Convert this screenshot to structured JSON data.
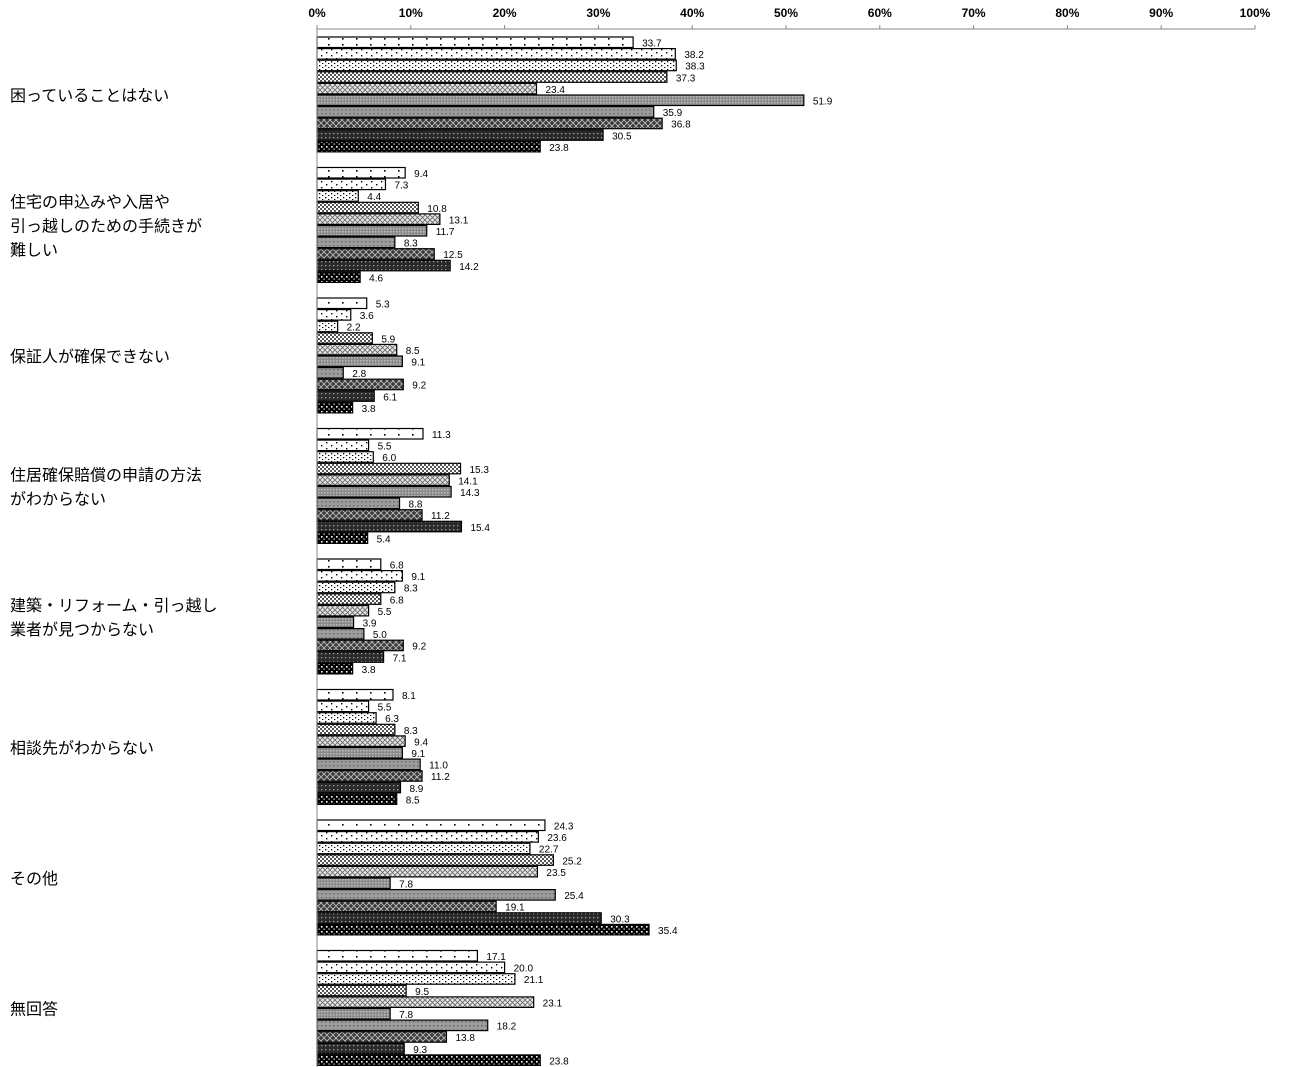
{
  "chart_data": {
    "type": "bar",
    "orientation": "horizontal",
    "xlim": [
      0,
      100
    ],
    "x_ticks": [
      "0%",
      "10%",
      "20%",
      "30%",
      "40%",
      "50%",
      "60%",
      "70%",
      "80%",
      "90%",
      "100%"
    ],
    "grid": false,
    "legend": "none",
    "categories": [
      [
        "困っていることはない"
      ],
      [
        "住宅の申込みや入居や",
        "引っ越しのための手続きが",
        "難しい"
      ],
      [
        "保証人が確保できない"
      ],
      [
        "住居確保賠償の申請の方法",
        "がわからない"
      ],
      [
        "建築・リフォーム・引っ越し",
        "業者が見つからない"
      ],
      [
        "相談先がわからない"
      ],
      [
        "その他"
      ],
      [
        "無回答"
      ]
    ],
    "series": [
      {
        "values": [
          33.7,
          9.4,
          5.3,
          11.3,
          6.8,
          8.1,
          24.3,
          17.1
        ],
        "value_labels": [
          "33.7",
          "9.4",
          "5.3",
          "11.3",
          "6.8",
          "8.1",
          "24.3",
          "17.1"
        ]
      },
      {
        "values": [
          38.2,
          7.3,
          3.6,
          5.5,
          9.1,
          5.5,
          23.6,
          20.0
        ],
        "value_labels": [
          "38.2",
          "7.3",
          "3.6",
          "5.5",
          "9.1",
          "5.5",
          "23.6",
          "20.0"
        ]
      },
      {
        "values": [
          38.3,
          4.4,
          2.2,
          6.0,
          8.3,
          6.3,
          22.7,
          21.1
        ],
        "value_labels": [
          "38.3",
          "4.4",
          "2.2",
          "6.0",
          "8.3",
          "6.3",
          "22.7",
          "21.1"
        ]
      },
      {
        "values": [
          37.3,
          10.8,
          5.9,
          15.3,
          6.8,
          8.3,
          25.2,
          9.5
        ],
        "value_labels": [
          "37.3",
          "10.8",
          "5.9",
          "15.3",
          "6.8",
          "8.3",
          "25.2",
          "9.5"
        ]
      },
      {
        "values": [
          23.4,
          13.1,
          8.5,
          14.1,
          5.5,
          9.4,
          23.5,
          23.1
        ],
        "value_labels": [
          "23.4",
          "13.1",
          "8.5",
          "14.1",
          "5.5",
          "9.4",
          "23.5",
          "23.1"
        ]
      },
      {
        "values": [
          51.9,
          11.7,
          9.1,
          14.3,
          3.9,
          9.1,
          7.8,
          7.8
        ],
        "value_labels": [
          "51.9",
          "11.7",
          "9.1",
          "14.3",
          "3.9",
          "9.1",
          "7.8",
          "7.8"
        ]
      },
      {
        "values": [
          35.9,
          8.3,
          2.8,
          8.8,
          5.0,
          11.0,
          25.4,
          18.2
        ],
        "value_labels": [
          "35.9",
          "8.3",
          "2.8",
          "8.8",
          "5.0",
          "11.0",
          "25.4",
          "18.2"
        ]
      },
      {
        "values": [
          36.8,
          12.5,
          9.2,
          11.2,
          9.2,
          11.2,
          19.1,
          13.8
        ],
        "value_labels": [
          "36.8",
          "12.5",
          "9.2",
          "11.2",
          "9.2",
          "11.2",
          "19.1",
          "13.8"
        ]
      },
      {
        "values": [
          30.5,
          14.2,
          6.1,
          15.4,
          7.1,
          8.9,
          30.3,
          9.3
        ],
        "value_labels": [
          "30.5",
          "14.2",
          "6.1",
          "15.4",
          "7.1",
          "8.9",
          "30.3",
          "9.3"
        ]
      },
      {
        "values": [
          23.8,
          4.6,
          3.8,
          5.4,
          3.8,
          8.5,
          35.4,
          23.8
        ],
        "value_labels": [
          "23.8",
          "4.6",
          "3.8",
          "5.4",
          "3.8",
          "8.5",
          "35.4",
          "23.8"
        ]
      }
    ],
    "series_fills": [
      "dots-sparse",
      "dots-sparse",
      "dots-medium",
      "checker-fine",
      "crosshatch-light",
      "gray-dense",
      "gray-medium",
      "crosshatch-dark",
      "dark-dots",
      "black-dots"
    ],
    "colors": {
      "bar_stroke": "#000000",
      "axis": "#888888",
      "text": "#000000"
    }
  }
}
